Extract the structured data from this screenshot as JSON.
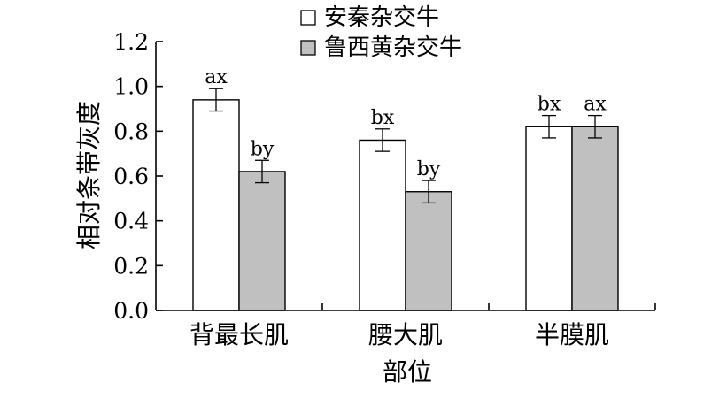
{
  "chart_data": {
    "type": "bar",
    "title": "",
    "xlabel": "部位",
    "ylabel": "相对条带灰度",
    "ylim": [
      0,
      1.2
    ],
    "yticks": [
      "0.0",
      "0.2",
      "0.4",
      "0.6",
      "0.8",
      "1.0",
      "1.2"
    ],
    "categories": [
      "背最长肌",
      "腰大肌",
      "半膜肌"
    ],
    "legend_position": "top-center",
    "grid": false,
    "series": [
      {
        "name": "安秦杂交牛",
        "color": "#ffffff",
        "values": [
          0.94,
          0.76,
          0.82
        ],
        "errors": [
          0.05,
          0.05,
          0.05
        ],
        "labels": [
          "ax",
          "bx",
          "bx"
        ]
      },
      {
        "name": "鲁西黄杂交牛",
        "color": "#c0c0c0",
        "values": [
          0.62,
          0.53,
          0.82
        ],
        "errors": [
          0.05,
          0.05,
          0.05
        ],
        "labels": [
          "by",
          "by",
          "ax"
        ]
      }
    ]
  }
}
